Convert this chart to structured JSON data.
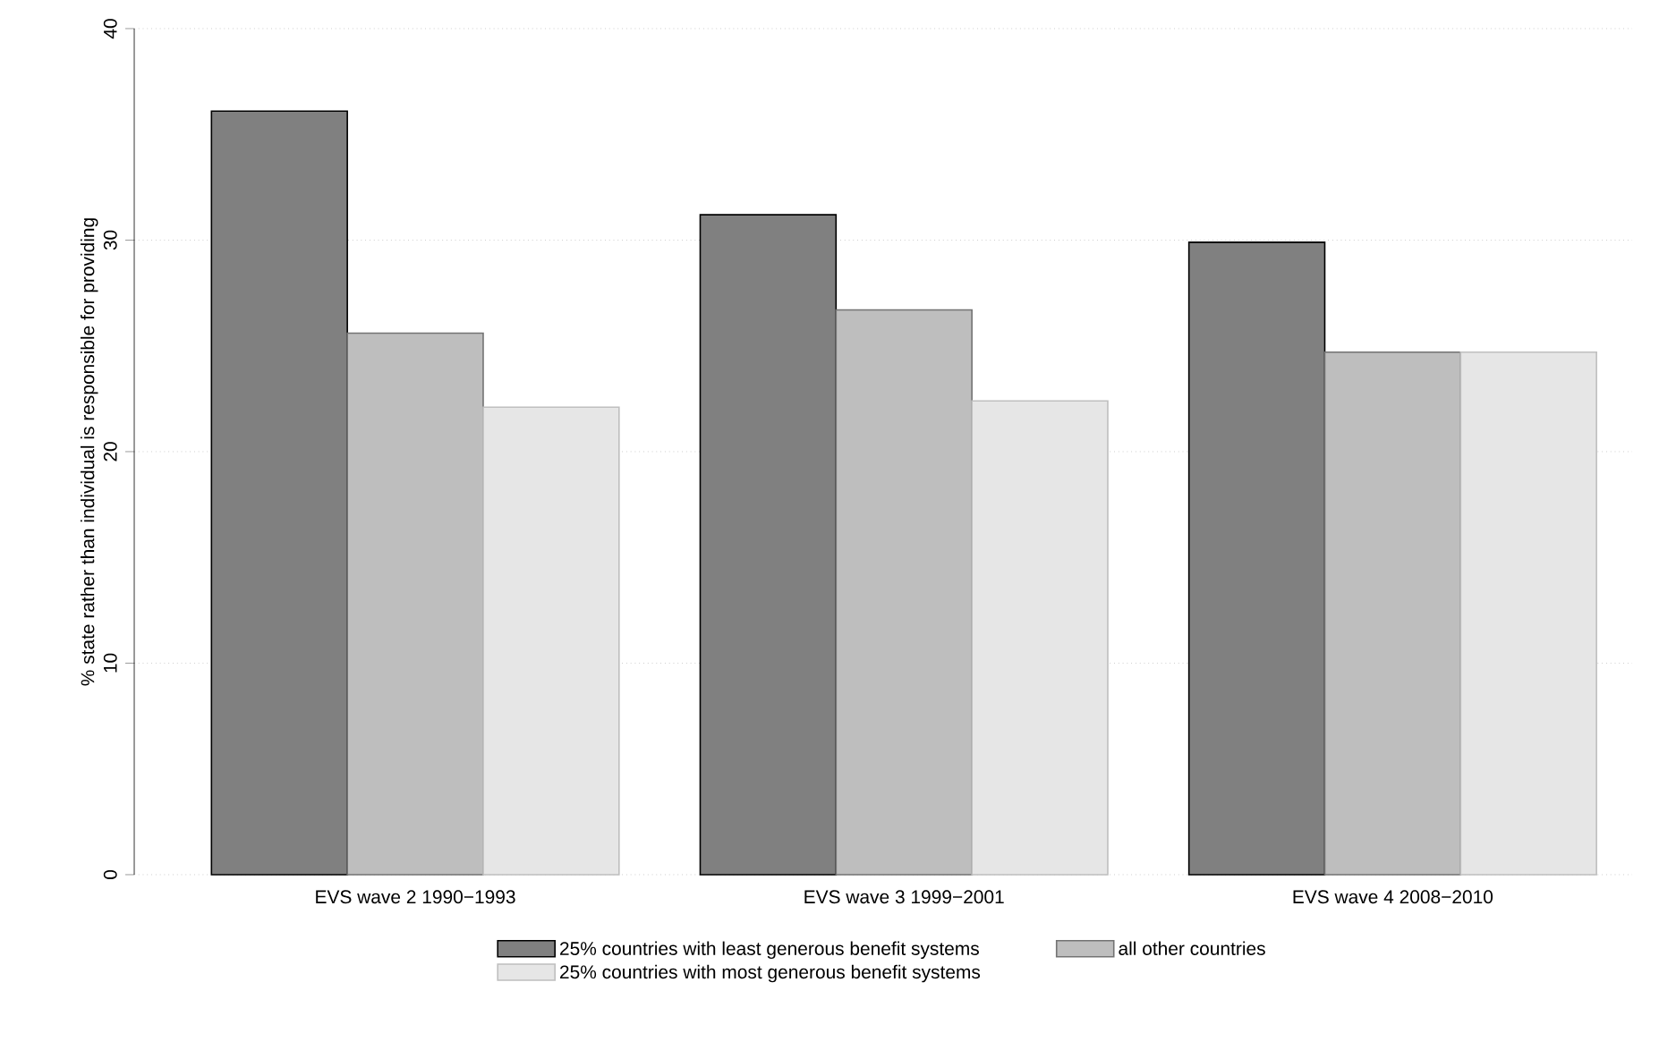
{
  "chart_data": {
    "type": "bar",
    "ylabel": "% state rather than individual is responsible for providing",
    "categories": [
      "EVS wave 2 1990−1993",
      "EVS wave 3 1999−2001",
      "EVS wave 4 2008−2010"
    ],
    "series": [
      {
        "name": "25% countries with least generous benefit systems",
        "color": "#808080",
        "values": [
          36.1,
          31.2,
          29.9
        ]
      },
      {
        "name": "all other countries",
        "color": "#bebebe",
        "values": [
          25.6,
          26.7,
          24.7
        ]
      },
      {
        "name": "25% countries with most generous benefit systems",
        "color": "#e6e6e6",
        "values": [
          22.1,
          22.4,
          24.7
        ]
      }
    ],
    "ylim": [
      0,
      40
    ],
    "yticks": [
      0,
      10,
      20,
      30,
      40
    ],
    "grid": "y",
    "legend": "bottom"
  }
}
